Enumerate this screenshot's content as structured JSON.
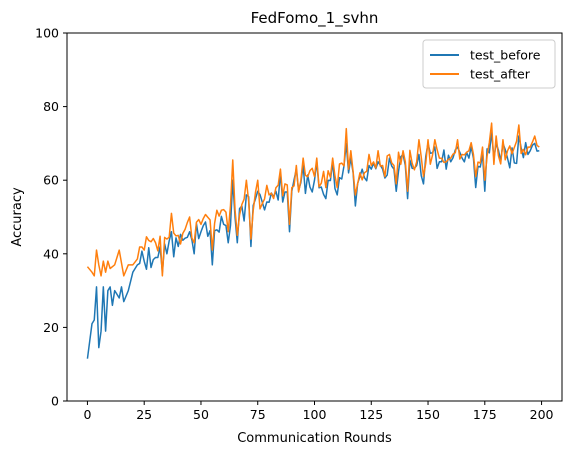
{
  "chart_data": {
    "type": "line",
    "title": "FedFomo_1_svhn",
    "xlabel": "Communication Rounds",
    "ylabel": "Accuracy",
    "xlim": [
      -9,
      209
    ],
    "ylim": [
      0,
      100
    ],
    "xticks": [
      0,
      25,
      50,
      75,
      100,
      125,
      150,
      175,
      200
    ],
    "yticks": [
      0,
      20,
      40,
      60,
      80,
      100
    ],
    "grid": false,
    "legend_position": "top-right",
    "series": [
      {
        "name": "test_before",
        "color": "#1f77b4",
        "anchors": [
          [
            0,
            11.5
          ],
          [
            2,
            21
          ],
          [
            3,
            22
          ],
          [
            4,
            31
          ],
          [
            5,
            14.5
          ],
          [
            6,
            19
          ],
          [
            7,
            31
          ],
          [
            8,
            19
          ],
          [
            9,
            30
          ],
          [
            10,
            31
          ],
          [
            11,
            26
          ],
          [
            12,
            30
          ],
          [
            14,
            28
          ],
          [
            15,
            31
          ],
          [
            16,
            27
          ],
          [
            18,
            30
          ],
          [
            20,
            35
          ],
          [
            22,
            37
          ],
          [
            25,
            38
          ],
          [
            30,
            39
          ],
          [
            35,
            40
          ],
          [
            40,
            42
          ],
          [
            45,
            44
          ],
          [
            50,
            46
          ],
          [
            55,
            47
          ],
          [
            60,
            49
          ],
          [
            65,
            50
          ],
          [
            70,
            52
          ],
          [
            75,
            54
          ],
          [
            80,
            54
          ],
          [
            85,
            55
          ],
          [
            90,
            57
          ],
          [
            95,
            58
          ],
          [
            100,
            60
          ],
          [
            105,
            59
          ],
          [
            110,
            61
          ],
          [
            115,
            62
          ],
          [
            120,
            61
          ],
          [
            125,
            63
          ],
          [
            130,
            63
          ],
          [
            135,
            63
          ],
          [
            140,
            64
          ],
          [
            145,
            64
          ],
          [
            150,
            64
          ],
          [
            155,
            65
          ],
          [
            160,
            65
          ],
          [
            165,
            66
          ],
          [
            170,
            66
          ],
          [
            175,
            66
          ],
          [
            180,
            66
          ],
          [
            185,
            66
          ],
          [
            190,
            67
          ],
          [
            195,
            68
          ],
          [
            199,
            68
          ]
        ],
        "spikes": [
          [
            33,
            35
          ],
          [
            37,
            46
          ],
          [
            45,
            46
          ],
          [
            47,
            40
          ],
          [
            55,
            37
          ],
          [
            60,
            48
          ],
          [
            62,
            43
          ],
          [
            64,
            60
          ],
          [
            66,
            43
          ],
          [
            70,
            56
          ],
          [
            72,
            42
          ],
          [
            75,
            57
          ],
          [
            85,
            62
          ],
          [
            89,
            46
          ],
          [
            92,
            63
          ],
          [
            95,
            64
          ],
          [
            101,
            65
          ],
          [
            105,
            55
          ],
          [
            108,
            65
          ],
          [
            110,
            56
          ],
          [
            114,
            70
          ],
          [
            116,
            66
          ],
          [
            118,
            53
          ],
          [
            124,
            64
          ],
          [
            128,
            65
          ],
          [
            133,
            66
          ],
          [
            136,
            57
          ],
          [
            139,
            67
          ],
          [
            141,
            55
          ],
          [
            146,
            67
          ],
          [
            148,
            59
          ],
          [
            150,
            70
          ],
          [
            153,
            69
          ],
          [
            158,
            63
          ],
          [
            163,
            69
          ],
          [
            168,
            66
          ],
          [
            171,
            58
          ],
          [
            174,
            67
          ],
          [
            175,
            57
          ],
          [
            178,
            73
          ],
          [
            180,
            70
          ],
          [
            183,
            70
          ],
          [
            190,
            72
          ],
          [
            194,
            67
          ],
          [
            197,
            70
          ]
        ]
      },
      {
        "name": "test_after",
        "color": "#ff7f0e",
        "anchors": [
          [
            0,
            36.5
          ],
          [
            2,
            35
          ],
          [
            3,
            34
          ],
          [
            4,
            41
          ],
          [
            5,
            37
          ],
          [
            6,
            34
          ],
          [
            7,
            38
          ],
          [
            8,
            35
          ],
          [
            9,
            38
          ],
          [
            10,
            36
          ],
          [
            12,
            37
          ],
          [
            14,
            41
          ],
          [
            16,
            34
          ],
          [
            18,
            37
          ],
          [
            20,
            37
          ],
          [
            25,
            41
          ],
          [
            30,
            43
          ],
          [
            35,
            44
          ],
          [
            40,
            45
          ],
          [
            45,
            46
          ],
          [
            50,
            48
          ],
          [
            55,
            49
          ],
          [
            60,
            51
          ],
          [
            65,
            52
          ],
          [
            70,
            54
          ],
          [
            75,
            55
          ],
          [
            80,
            56
          ],
          [
            85,
            57
          ],
          [
            90,
            58
          ],
          [
            95,
            59
          ],
          [
            100,
            61
          ],
          [
            105,
            61
          ],
          [
            110,
            62
          ],
          [
            115,
            63
          ],
          [
            120,
            62
          ],
          [
            125,
            64
          ],
          [
            130,
            64
          ],
          [
            135,
            64
          ],
          [
            140,
            65
          ],
          [
            145,
            65
          ],
          [
            150,
            65
          ],
          [
            155,
            66
          ],
          [
            160,
            66
          ],
          [
            165,
            67
          ],
          [
            170,
            67
          ],
          [
            175,
            67
          ],
          [
            180,
            67
          ],
          [
            185,
            68
          ],
          [
            190,
            68
          ],
          [
            195,
            69
          ],
          [
            199,
            69
          ]
        ],
        "spikes": [
          [
            33,
            34
          ],
          [
            37,
            51
          ],
          [
            45,
            50
          ],
          [
            47,
            43
          ],
          [
            55,
            41
          ],
          [
            60,
            52
          ],
          [
            62,
            46
          ],
          [
            64,
            65.5
          ],
          [
            66,
            45
          ],
          [
            70,
            60
          ],
          [
            72,
            44
          ],
          [
            75,
            60
          ],
          [
            85,
            63
          ],
          [
            89,
            48
          ],
          [
            92,
            64
          ],
          [
            95,
            66
          ],
          [
            101,
            66
          ],
          [
            105,
            58
          ],
          [
            108,
            66
          ],
          [
            110,
            58
          ],
          [
            114,
            74
          ],
          [
            116,
            68
          ],
          [
            118,
            56
          ],
          [
            124,
            67
          ],
          [
            128,
            68
          ],
          [
            133,
            67
          ],
          [
            136,
            59
          ],
          [
            139,
            68
          ],
          [
            141,
            57
          ],
          [
            146,
            71
          ],
          [
            148,
            61
          ],
          [
            150,
            71
          ],
          [
            153,
            71
          ],
          [
            158,
            65
          ],
          [
            163,
            71
          ],
          [
            168,
            68
          ],
          [
            171,
            61
          ],
          [
            174,
            69
          ],
          [
            175,
            60
          ],
          [
            178,
            75.5
          ],
          [
            180,
            72
          ],
          [
            183,
            71
          ],
          [
            190,
            75
          ],
          [
            194,
            69
          ],
          [
            197,
            72
          ]
        ]
      }
    ]
  }
}
